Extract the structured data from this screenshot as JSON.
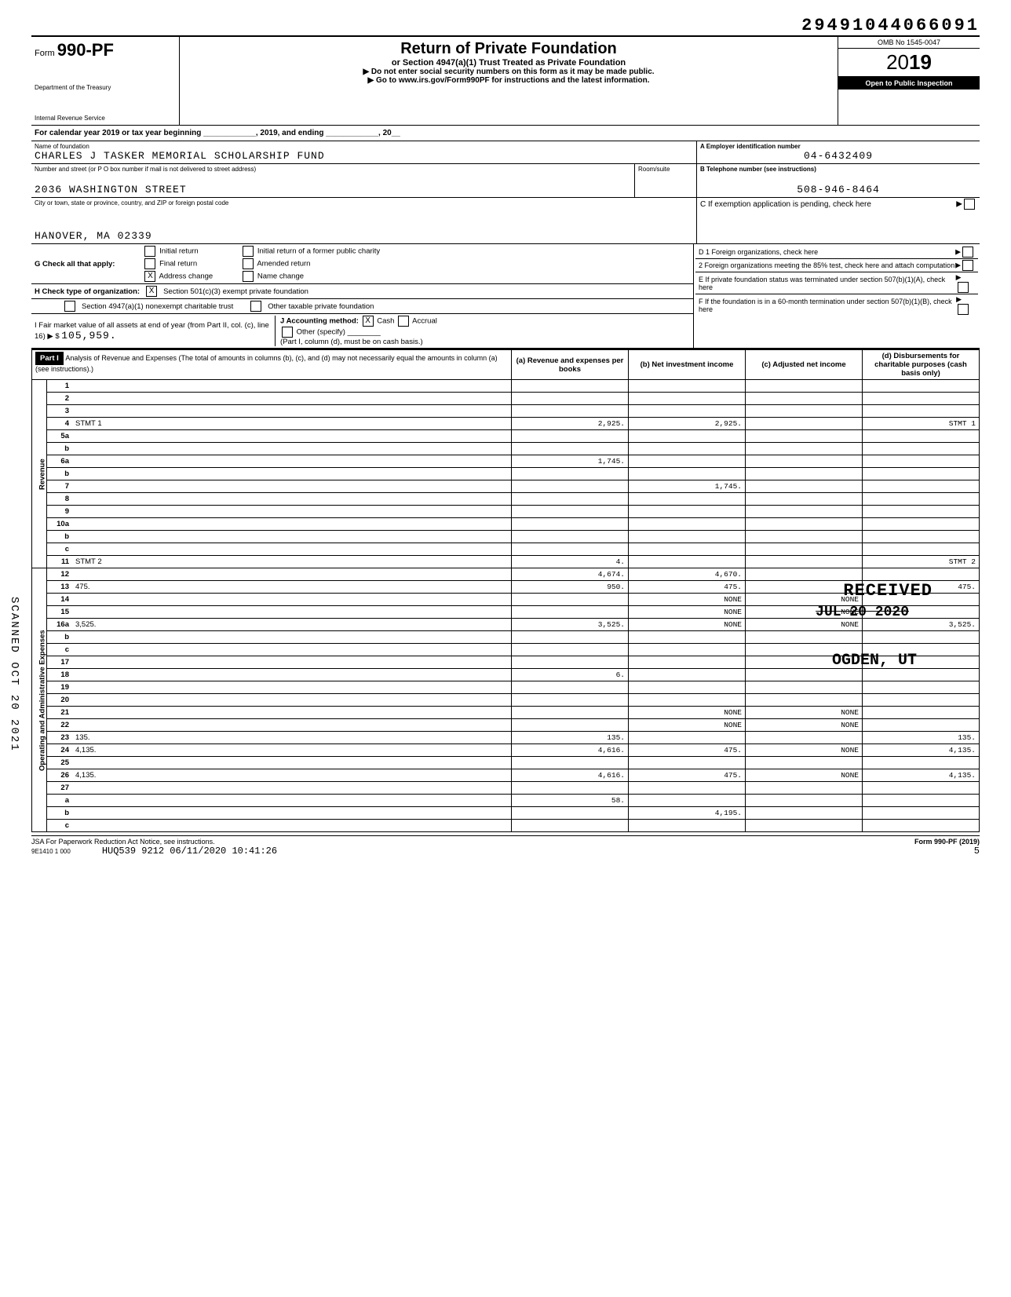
{
  "dln": "29491044066091",
  "form_prefix": "Form",
  "form_number": "990-PF",
  "dept1": "Department of the Treasury",
  "dept2": "Internal Revenue Service",
  "title": "Return of Private Foundation",
  "subtitle": "or Section 4947(a)(1) Trust Treated as Private Foundation",
  "note1": "▶ Do not enter social security numbers on this form as it may be made public.",
  "note2": "▶ Go to www.irs.gov/Form990PF for instructions and the latest information.",
  "omb": "OMB No 1545-0047",
  "year_prefix": "20",
  "year_bold": "19",
  "inspect": "Open to Public Inspection",
  "cal_year": "For calendar year 2019 or tax year beginning ____________, 2019, and ending ____________, 20__",
  "name_lbl": "Name of foundation",
  "name_val": "CHARLES J TASKER MEMORIAL SCHOLARSHIP FUND",
  "addr_lbl": "Number and street (or P O box number if mail is not delivered to street address)",
  "addr_val": "2036 WASHINGTON STREET",
  "room_lbl": "Room/suite",
  "city_lbl": "City or town, state or province, country, and ZIP or foreign postal code",
  "city_val": "HANOVER, MA 02339",
  "a_lbl": "A  Employer identification number",
  "a_val": "04-6432409",
  "b_lbl": "B  Telephone number (see instructions)",
  "b_val": "508-946-8464",
  "c_lbl": "C  If exemption application is pending, check here",
  "d1": "D 1 Foreign organizations, check here",
  "d2": "2 Foreign organizations meeting the 85% test, check here and attach computation",
  "e_lbl": "E  If private foundation status was terminated under section 507(b)(1)(A), check here",
  "f_lbl": "F  If the foundation is in a 60-month termination under section 507(b)(1)(B), check here",
  "g_lbl": "G Check all that apply:",
  "g_opts": [
    "Initial return",
    "Final return",
    "Address change",
    "Initial return of a former public charity",
    "Amended return",
    "Name change"
  ],
  "g_checked": "X",
  "h_lbl": "H Check type of organization:",
  "h_opts": [
    "Section 501(c)(3) exempt private foundation",
    "Section 4947(a)(1) nonexempt charitable trust",
    "Other taxable private foundation"
  ],
  "h_checked": "X",
  "i_lbl": "I  Fair market value of all assets at end of year (from Part II, col. (c), line 16) ▶ $",
  "i_val": "105,959.",
  "j_lbl": "J Accounting method:",
  "j_opts": [
    "Cash",
    "Accrual",
    "Other (specify)"
  ],
  "j_checked": "X",
  "j_note": "(Part I, column (d), must be on cash basis.)",
  "part1_hdr": "Part I",
  "part1_desc": "Analysis of Revenue and Expenses (The total of amounts in columns (b), (c), and (d) may not necessarily equal the amounts in column (a) (see instructions).)",
  "col_a": "(a) Revenue and expenses per books",
  "col_b": "(b) Net investment income",
  "col_c": "(c) Adjusted net income",
  "col_d": "(d) Disbursements for charitable purposes (cash basis only)",
  "vert_rev": "Revenue",
  "vert_exp": "Operating and Administrative Expenses",
  "lines": [
    {
      "n": "1",
      "d": "",
      "a": "",
      "b": "",
      "c": ""
    },
    {
      "n": "2",
      "d": "",
      "a": "",
      "b": "",
      "c": ""
    },
    {
      "n": "3",
      "d": "",
      "a": "",
      "b": "",
      "c": ""
    },
    {
      "n": "4",
      "d": "STMT 1",
      "a": "2,925.",
      "b": "2,925.",
      "c": ""
    },
    {
      "n": "5a",
      "d": "",
      "a": "",
      "b": "",
      "c": ""
    },
    {
      "n": "b",
      "d": "",
      "a": "",
      "b": "",
      "c": ""
    },
    {
      "n": "6a",
      "d": "",
      "a": "1,745.",
      "b": "",
      "c": ""
    },
    {
      "n": "b",
      "d": "",
      "a": "",
      "b": "",
      "c": ""
    },
    {
      "n": "7",
      "d": "",
      "a": "",
      "b": "1,745.",
      "c": ""
    },
    {
      "n": "8",
      "d": "",
      "a": "",
      "b": "",
      "c": ""
    },
    {
      "n": "9",
      "d": "",
      "a": "",
      "b": "",
      "c": ""
    },
    {
      "n": "10a",
      "d": "",
      "a": "",
      "b": "",
      "c": ""
    },
    {
      "n": "b",
      "d": "",
      "a": "",
      "b": "",
      "c": ""
    },
    {
      "n": "c",
      "d": "",
      "a": "",
      "b": "",
      "c": ""
    },
    {
      "n": "11",
      "d": "STMT 2",
      "a": "4.",
      "b": "",
      "c": ""
    },
    {
      "n": "12",
      "d": "",
      "a": "4,674.",
      "b": "4,670.",
      "c": ""
    },
    {
      "n": "13",
      "d": "475.",
      "a": "950.",
      "b": "475.",
      "c": ""
    },
    {
      "n": "14",
      "d": "",
      "a": "",
      "b": "NONE",
      "c": "NONE"
    },
    {
      "n": "15",
      "d": "",
      "a": "",
      "b": "NONE",
      "c": "NONE"
    },
    {
      "n": "16a",
      "d": "3,525.",
      "a": "3,525.",
      "b": "NONE",
      "c": "NONE"
    },
    {
      "n": "b",
      "d": "",
      "a": "",
      "b": "",
      "c": ""
    },
    {
      "n": "c",
      "d": "",
      "a": "",
      "b": "",
      "c": ""
    },
    {
      "n": "17",
      "d": "",
      "a": "",
      "b": "",
      "c": ""
    },
    {
      "n": "18",
      "d": "",
      "a": "6.",
      "b": "",
      "c": ""
    },
    {
      "n": "19",
      "d": "",
      "a": "",
      "b": "",
      "c": ""
    },
    {
      "n": "20",
      "d": "",
      "a": "",
      "b": "",
      "c": ""
    },
    {
      "n": "21",
      "d": "",
      "a": "",
      "b": "NONE",
      "c": "NONE"
    },
    {
      "n": "22",
      "d": "",
      "a": "",
      "b": "NONE",
      "c": "NONE"
    },
    {
      "n": "23",
      "d": "135.",
      "a": "135.",
      "b": "",
      "c": ""
    },
    {
      "n": "24",
      "d": "4,135.",
      "a": "4,616.",
      "b": "475.",
      "c": "NONE"
    },
    {
      "n": "25",
      "d": "",
      "a": "",
      "b": "",
      "c": ""
    },
    {
      "n": "26",
      "d": "4,135.",
      "a": "4,616.",
      "b": "475.",
      "c": "NONE"
    },
    {
      "n": "27",
      "d": "",
      "a": "",
      "b": "",
      "c": ""
    },
    {
      "n": "a",
      "d": "",
      "a": "58.",
      "b": "",
      "c": ""
    },
    {
      "n": "b",
      "d": "",
      "a": "",
      "b": "4,195.",
      "c": ""
    },
    {
      "n": "c",
      "d": "",
      "a": "",
      "b": "",
      "c": ""
    }
  ],
  "stamp_received": "RECEIVED",
  "stamp_date": "JUL 20 2020",
  "stamp_ogden": "OGDEN, UT",
  "scanned": "SCANNED OCT 20 2021",
  "footer_left": "JSA For Paperwork Reduction Act Notice, see instructions.",
  "footer_right": "Form 990-PF (2019)",
  "footer_code": "9E1410 1 000",
  "footer_stamp": "HUQ539 9212 06/11/2020 10:41:26",
  "footer_page": "5",
  "split_row": 15
}
